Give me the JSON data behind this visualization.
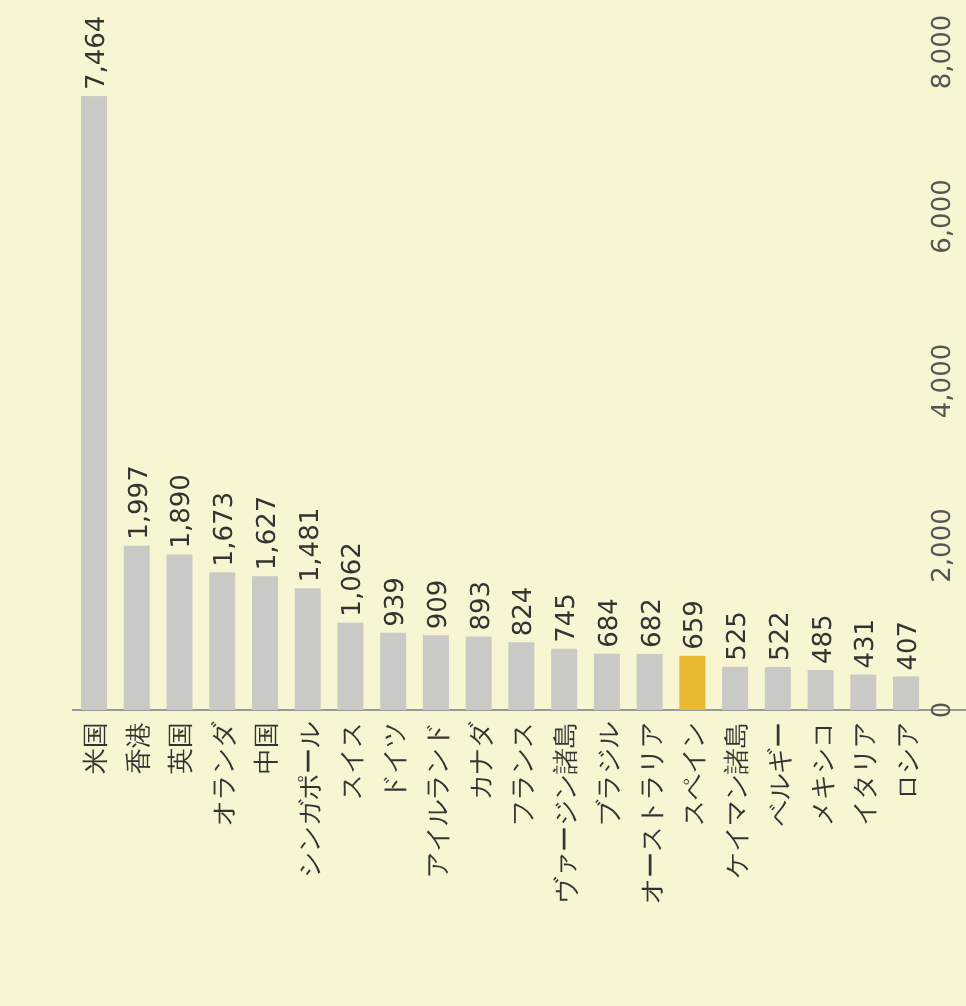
{
  "chart_data": {
    "type": "bar",
    "categories": [
      "米国",
      "香港",
      "英国",
      "オランダ",
      "中国",
      "シンガポール",
      "スイス",
      "ドイツ",
      "アイルランド",
      "カナダ",
      "フランス",
      "ヴァージン諸島",
      "ブラジル",
      "オーストラリア",
      "スペイン",
      "ケイマン諸島",
      "ベルギー",
      "メキシコ",
      "イタリア",
      "ロシア"
    ],
    "values": [
      7464,
      1997,
      1890,
      1673,
      1627,
      1481,
      1062,
      939,
      909,
      893,
      824,
      745,
      684,
      682,
      659,
      525,
      522,
      485,
      431,
      407
    ],
    "value_labels": [
      "7,464",
      "1,997",
      "1,890",
      "1,673",
      "1,627",
      "1,481",
      "1,062",
      "939",
      "909",
      "893",
      "824",
      "745",
      "684",
      "682",
      "659",
      "525",
      "522",
      "485",
      "431",
      "407"
    ],
    "colors": [
      "#c9c9c5",
      "#c9c9c5",
      "#c9c9c5",
      "#c9c9c5",
      "#c9c9c5",
      "#c9c9c5",
      "#c9c9c5",
      "#c9c9c5",
      "#c9c9c5",
      "#c9c9c5",
      "#c9c9c5",
      "#c9c9c5",
      "#c9c9c5",
      "#c9c9c5",
      "#e8b830",
      "#c9c9c5",
      "#c9c9c5",
      "#c9c9c5",
      "#c9c9c5",
      "#c9c9c5"
    ],
    "ylim": [
      0,
      8000
    ],
    "yticks": [
      0,
      {
        "value": 2000,
        "label": "2,000"
      },
      {
        "value": 4000,
        "label": "4,000"
      },
      {
        "value": 6000,
        "label": "6,000"
      },
      {
        "value": 8000,
        "label": "8,000"
      }
    ]
  }
}
